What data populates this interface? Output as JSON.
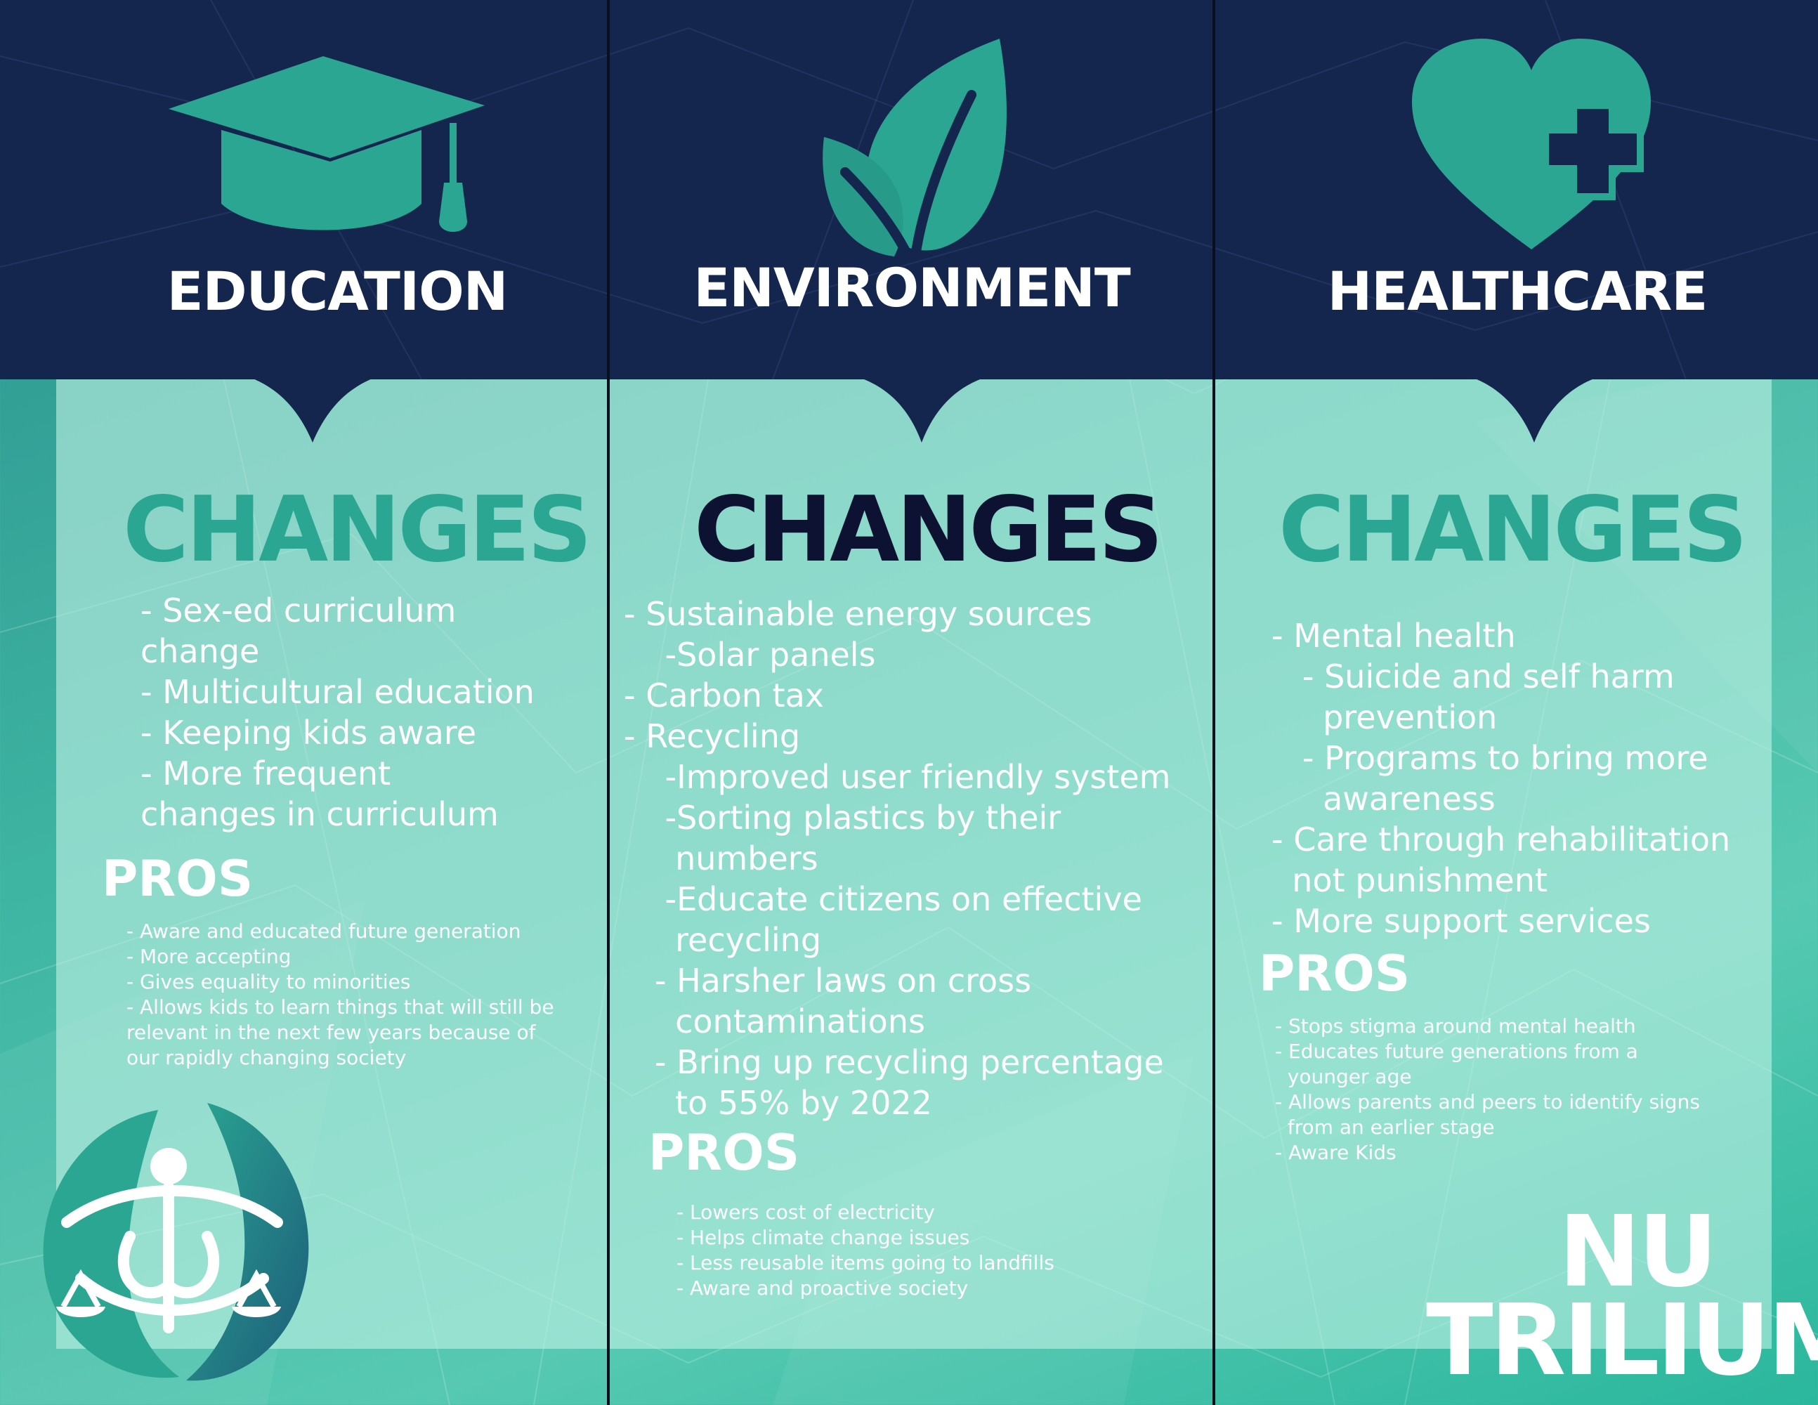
{
  "colors": {
    "navy": "#14264e",
    "teal_accent": "#2aa692",
    "dark_text": "#0d1233",
    "white": "#ffffff"
  },
  "columns": [
    {
      "icon": "graduation-cap-icon",
      "title": "EDUCATION",
      "changes_heading": "CHANGES",
      "changes": [
        "- Sex-ed curriculum",
        "change",
        "- Multicultural education",
        "- Keeping kids aware",
        "- More frequent",
        "changes in curriculum"
      ],
      "pros_heading": "PROS",
      "pros": [
        "- Aware and educated future generation",
        "- More accepting",
        "- Gives equality to minorities",
        "- Allows kids to learn things that will still be",
        "relevant in the next few years because of",
        "our rapidly changing society"
      ]
    },
    {
      "icon": "leaf-sprout-icon",
      "title": "ENVIRONMENT",
      "changes_heading": "CHANGES",
      "changes": [
        "- Sustainable energy sources",
        "    -Solar panels",
        "- Carbon tax",
        "- Recycling",
        "    -Improved user friendly system",
        "    -Sorting plastics by their",
        "     numbers",
        "    -Educate citizens on effective",
        "     recycling",
        "   - Harsher laws on cross",
        "     contaminations",
        "   - Bring up recycling percentage",
        "     to 55% by 2022"
      ],
      "pros_heading": "PROS",
      "pros": [
        "- Lowers cost of electricity",
        "- Helps climate change issues",
        "- Less reusable items going to landfills",
        "- Aware and proactive society"
      ]
    },
    {
      "icon": "heart-plus-icon",
      "title": "HEALTHCARE",
      "changes_heading": "CHANGES",
      "changes": [
        "- Mental health",
        "   - Suicide and self harm",
        "     prevention",
        "   - Programs to bring more",
        "     awareness",
        "- Care through rehabilitation",
        "  not punishment",
        "- More support services"
      ],
      "pros_heading": "PROS",
      "pros": [
        "- Stops stigma around mental health",
        "- Educates future generations from a",
        "  younger age",
        "- Allows parents and peers to identify signs",
        "  from an earlier stage",
        "- Aware Kids"
      ]
    }
  ],
  "brand": {
    "line1": "NU",
    "line2": "TRILIUM",
    "logo_icon": "justice-scales-logo-icon"
  }
}
